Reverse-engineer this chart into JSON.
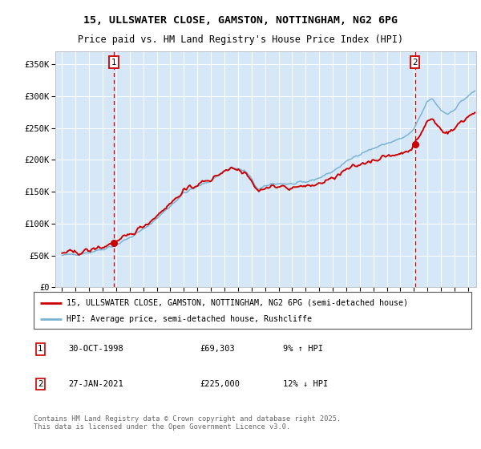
{
  "title_line1": "15, ULLSWATER CLOSE, GAMSTON, NOTTINGHAM, NG2 6PG",
  "title_line2": "Price paid vs. HM Land Registry's House Price Index (HPI)",
  "bg_color": "#d6e8f7",
  "hpi_color": "#7ab3d4",
  "price_color": "#cc0000",
  "marker_color": "#cc0000",
  "vline_color": "#cc0000",
  "sale1_date": 1998.83,
  "sale1_price": 69303,
  "sale2_date": 2021.07,
  "sale2_price": 225000,
  "ylim": [
    0,
    370000
  ],
  "xlim_start": 1994.5,
  "xlim_end": 2025.6,
  "ylabel_ticks": [
    0,
    50000,
    100000,
    150000,
    200000,
    250000,
    300000,
    350000
  ],
  "ylabel_labels": [
    "£0",
    "£50K",
    "£100K",
    "£150K",
    "£200K",
    "£250K",
    "£300K",
    "£350K"
  ],
  "legend_line1": "15, ULLSWATER CLOSE, GAMSTON, NOTTINGHAM, NG2 6PG (semi-detached house)",
  "legend_line2": "HPI: Average price, semi-detached house, Rushcliffe",
  "footnote": "Contains HM Land Registry data © Crown copyright and database right 2025.\nThis data is licensed under the Open Government Licence v3.0."
}
